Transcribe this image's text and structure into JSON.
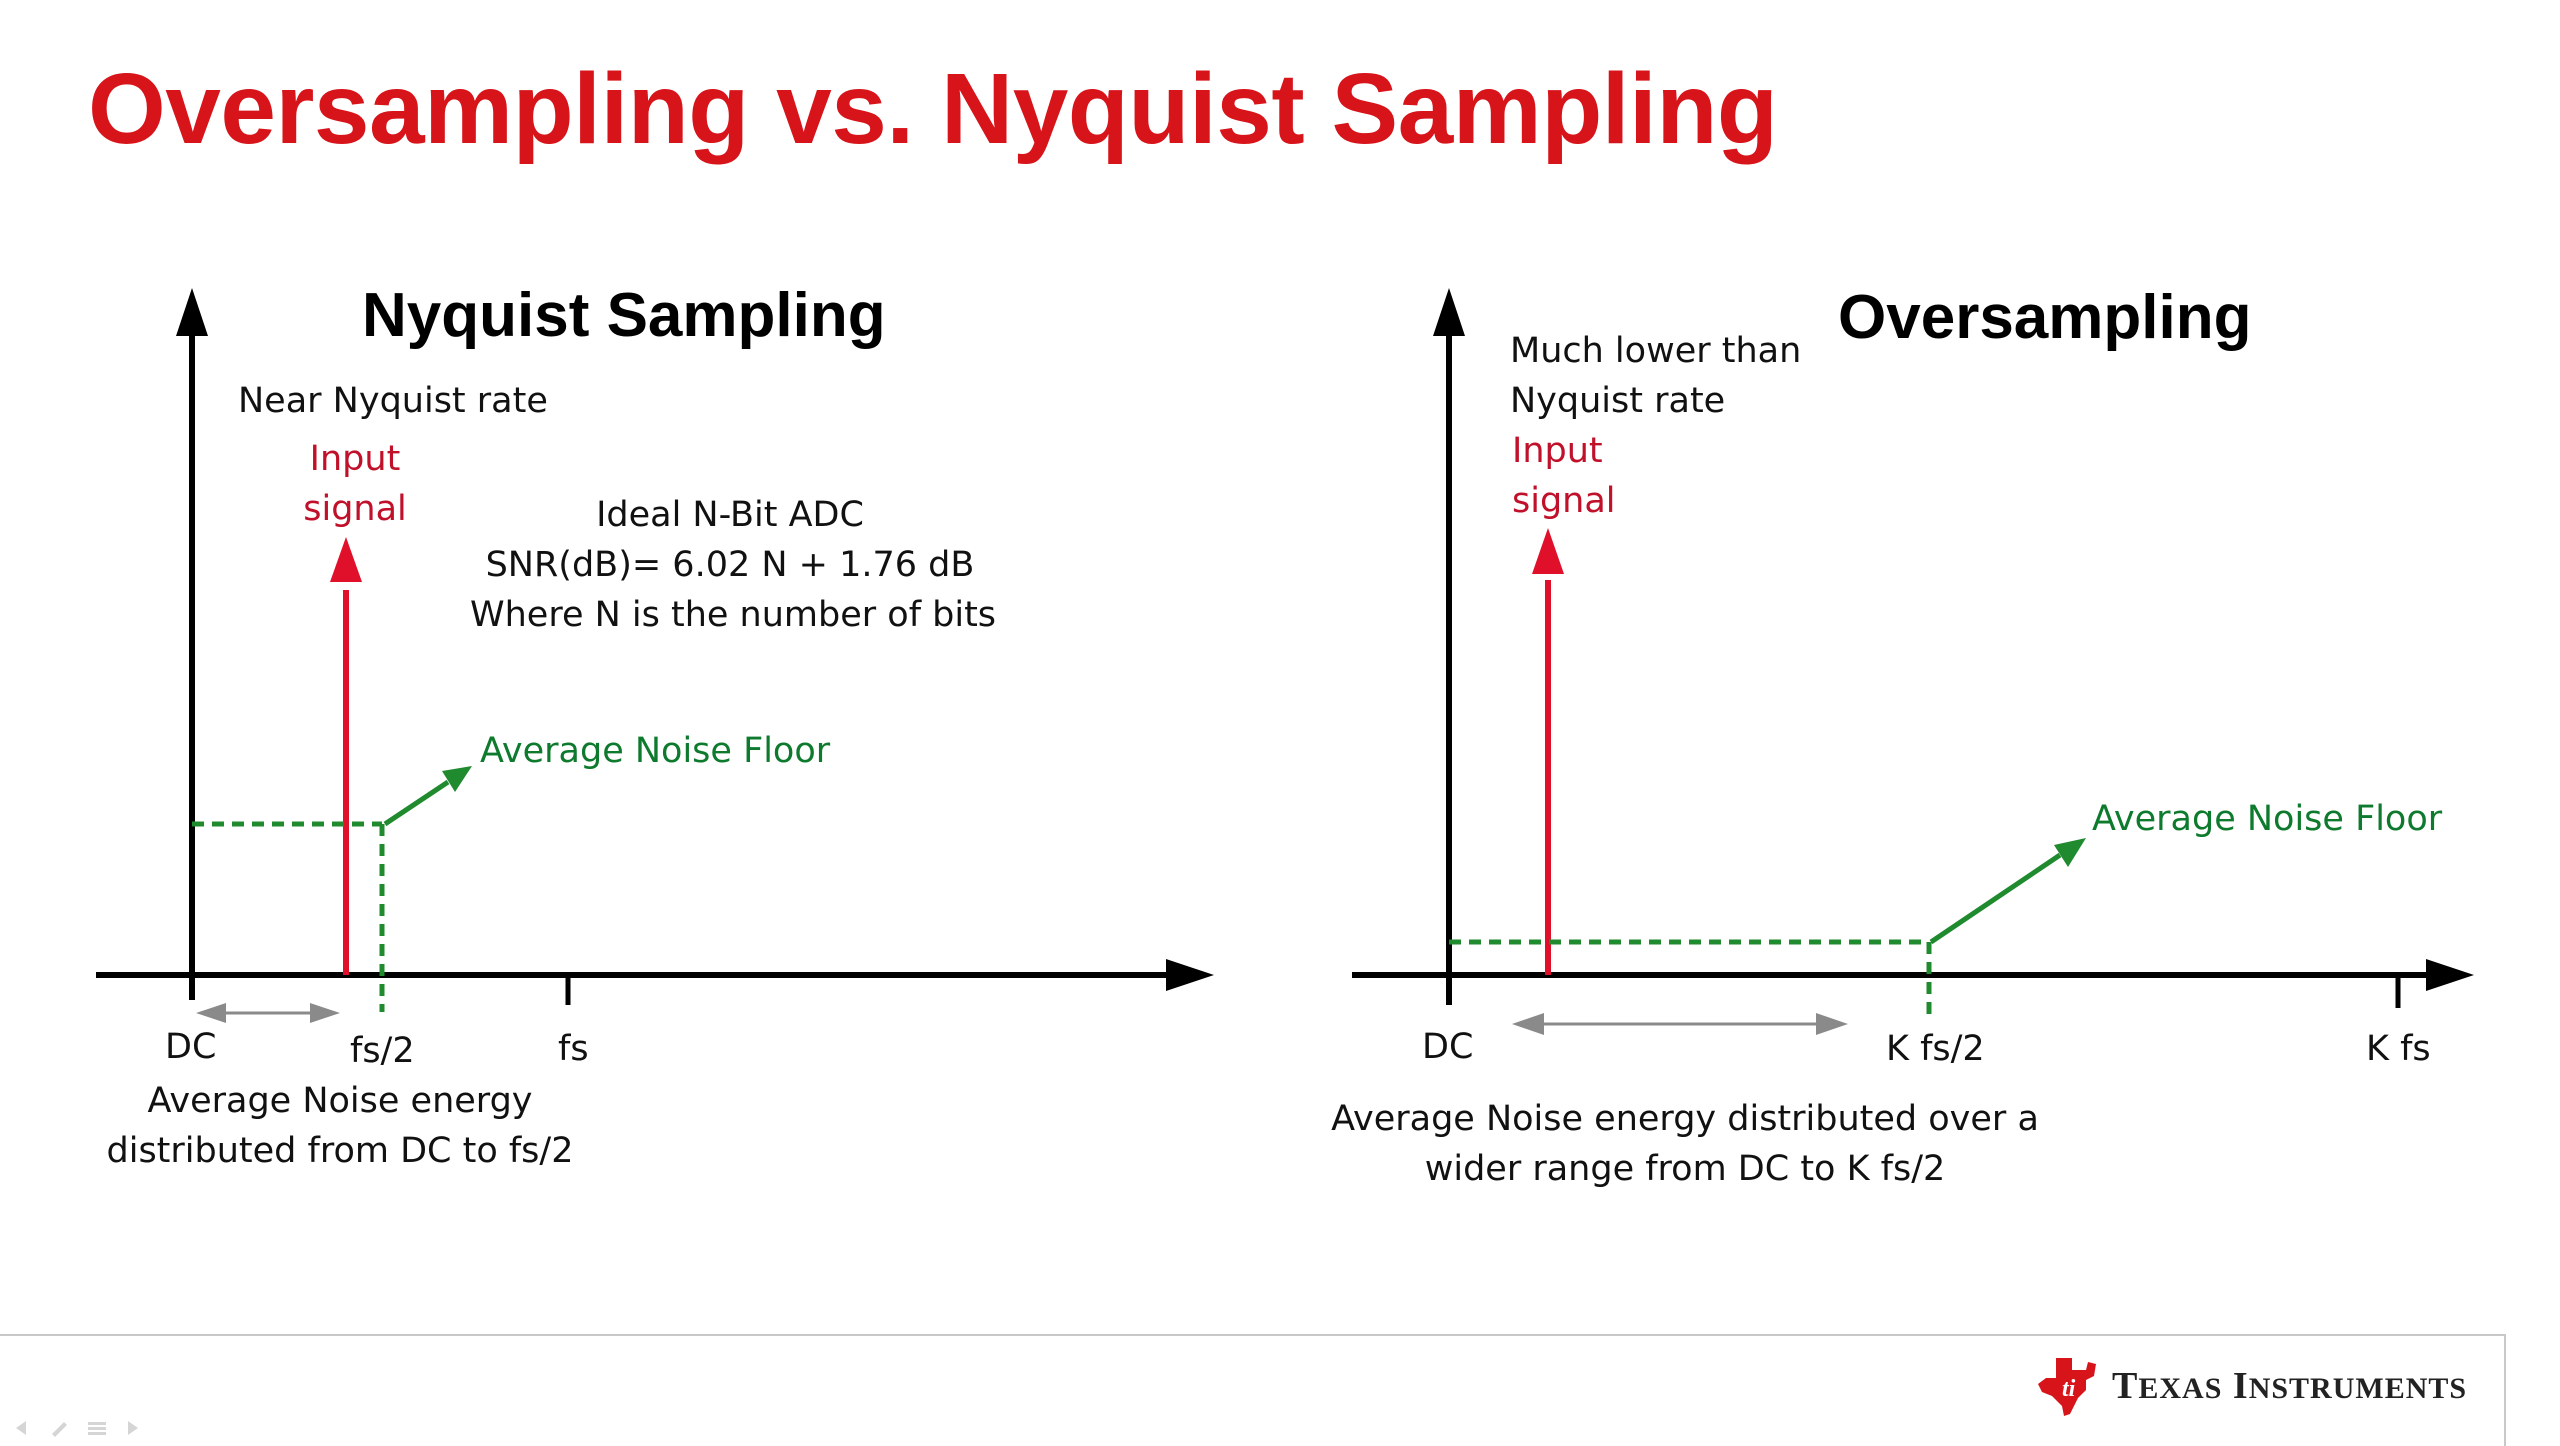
{
  "title": "Oversampling vs. Nyquist Sampling",
  "nyquist": {
    "title": "Nyquist Sampling",
    "rate_label": "Near Nyquist rate",
    "input_line1": "Input",
    "input_line2": "signal",
    "adc_line1": "Ideal N-Bit ADC",
    "adc_line2": "SNR(dB)= 6.02 N + 1.76 dB",
    "adc_line3": "Where N is the number of bits",
    "noise_floor": "Average Noise Floor",
    "tick_dc": "DC",
    "tick_half": "fs/2",
    "tick_full": "fs",
    "caption_line1": "Average Noise energy",
    "caption_line2": "distributed from DC to fs/2"
  },
  "oversampling": {
    "title": "Oversampling",
    "rate_line1": "Much lower than",
    "rate_line2": "Nyquist rate",
    "input_line1": "Input",
    "input_line2": "signal",
    "noise_floor": "Average Noise Floor",
    "tick_dc": "DC",
    "tick_half": "K fs/2",
    "tick_full": "K fs",
    "caption_line1": "Average Noise energy distributed over a",
    "caption_line2": "wider range from DC to K fs/2"
  },
  "footer": {
    "brand_first": "T",
    "brand_first_rest": "EXAS",
    "brand_second": "I",
    "brand_second_rest": "NSTRUMENTS"
  },
  "colors": {
    "title_red": "#d7141a",
    "signal_red": "#e0102a",
    "noise_green": "#1f8a2e",
    "axis_black": "#000000",
    "range_gray": "#8a8a8a"
  },
  "icons": [
    "texas-instruments-logo-icon",
    "arrow-icon"
  ]
}
